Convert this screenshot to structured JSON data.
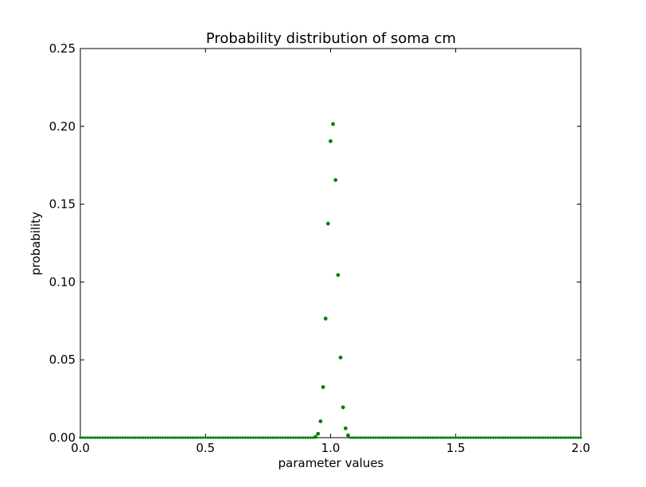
{
  "chart_data": {
    "type": "scatter",
    "title": "Probability distribution of soma cm",
    "xlabel": "parameter values",
    "ylabel": "probability",
    "xlim": [
      0.0,
      2.0
    ],
    "ylim": [
      0.0,
      0.25
    ],
    "xticks": [
      "0.0",
      "0.5",
      "1.0",
      "1.5",
      "2.0"
    ],
    "yticks": [
      "0.00",
      "0.05",
      "0.10",
      "0.15",
      "0.20",
      "0.25"
    ],
    "grid": false,
    "marker_color": "#008000",
    "series": [
      {
        "x": [
          0.94,
          0.95,
          0.96,
          0.97,
          0.98,
          0.99,
          1.0,
          1.01,
          1.02,
          1.03,
          1.04,
          1.05,
          1.06,
          1.07
        ],
        "y": [
          0.0005,
          0.0025,
          0.0105,
          0.0325,
          0.0765,
          0.1375,
          0.1905,
          0.2015,
          0.1655,
          0.1045,
          0.0515,
          0.0195,
          0.006,
          0.0015
        ]
      }
    ]
  }
}
